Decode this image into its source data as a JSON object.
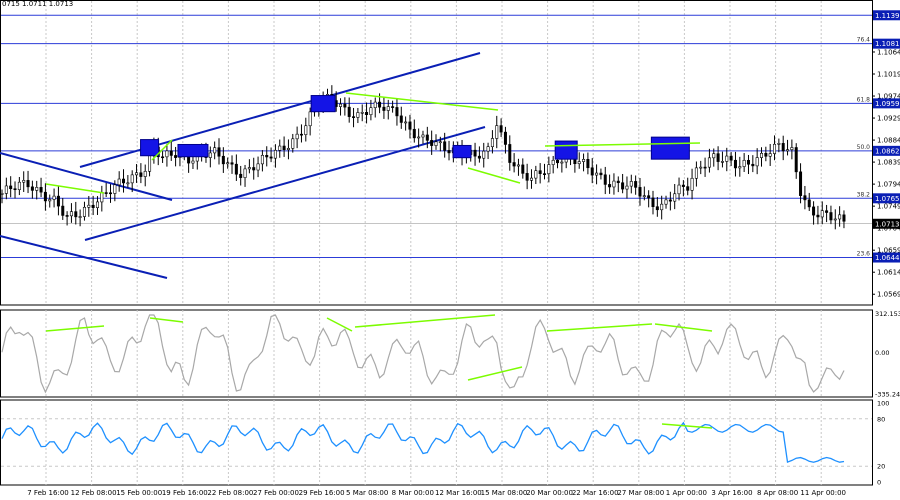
{
  "ohlc_readout": "0715 1.0711 1.0713",
  "colors": {
    "background": "#ffffff",
    "grid": "#c8c8c8",
    "candle": "#000000",
    "trendline": "#0a1fb5",
    "fib_line": "#2c3cd8",
    "fib_label_fill": "#0a1fb5",
    "zone": "#1414e6",
    "divergence": "#7cfc00",
    "cci": "#a8a8a8",
    "stochastic": "#1e90ff",
    "current_price_line": "#888888"
  },
  "chart_data": [
    {
      "type": "candlestick",
      "series_name": "EUR/USD",
      "price_axis": {
        "range": [
          1.0547,
          1.116
        ],
        "ticks": [
          "1.1064",
          "1.1019",
          "1.0974",
          "1.0929",
          "1.0884",
          "1.0839",
          "1.0794",
          "1.0749",
          "1.0704",
          "1.0659",
          "1.0614",
          "1.0569"
        ]
      },
      "current_price": "1.0713",
      "fib_levels": [
        {
          "level": "",
          "price": "1.1139"
        },
        {
          "level": "76.4",
          "price": "1.1081"
        },
        {
          "level": "61.8",
          "price": "1.0959"
        },
        {
          "level": "50.0",
          "price": "1.0862"
        },
        {
          "level": "38.2",
          "price": "1.0765"
        },
        {
          "level": "23.6",
          "price": "1.0644"
        }
      ],
      "x_labels": [
        "7 Feb 16:00",
        "12 Feb 08:00",
        "15 Feb 00:00",
        "19 Feb 16:00",
        "22 Feb 08:00",
        "27 Feb 00:00",
        "29 Feb 16:00",
        "5 Mar 08:00",
        "8 Mar 00:00",
        "12 Mar 16:00",
        "15 Mar 08:00",
        "20 Mar 00:00",
        "22 Mar 16:00",
        "27 Mar 08:00",
        "1 Apr 00:00",
        "3 Apr 16:00",
        "8 Apr 08:00",
        "11 Apr 00:00"
      ],
      "close_path": [
        [
          0,
          1.0775
        ],
        [
          3,
          1.0785
        ],
        [
          6,
          1.0795
        ],
        [
          9,
          1.078
        ],
        [
          12,
          1.076
        ],
        [
          15,
          1.072
        ],
        [
          18,
          1.0735
        ],
        [
          21,
          1.076
        ],
        [
          24,
          1.0775
        ],
        [
          27,
          1.079
        ],
        [
          30,
          1.0808
        ],
        [
          33,
          1.083
        ],
        [
          35,
          1.087
        ],
        [
          37,
          1.0845
        ],
        [
          40,
          1.0852
        ],
        [
          43,
          1.0848
        ],
        [
          46,
          1.086
        ],
        [
          49,
          1.0855
        ],
        [
          52,
          1.083
        ],
        [
          55,
          1.0818
        ],
        [
          58,
          1.0835
        ],
        [
          61,
          1.0845
        ],
        [
          64,
          1.086
        ],
        [
          67,
          1.0885
        ],
        [
          70,
          1.092
        ],
        [
          73,
          1.096
        ],
        [
          76,
          1.0965
        ],
        [
          79,
          1.095
        ],
        [
          82,
          1.0935
        ],
        [
          85,
          1.0945
        ],
        [
          88,
          1.095
        ],
        [
          91,
          1.0945
        ],
        [
          94,
          1.0905
        ],
        [
          97,
          1.088
        ],
        [
          100,
          1.0875
        ],
        [
          103,
          1.087
        ],
        [
          106,
          1.0862
        ],
        [
          109,
          1.0845
        ],
        [
          112,
          1.086
        ],
        [
          114,
          1.0925
        ],
        [
          117,
          1.085
        ],
        [
          120,
          1.081
        ],
        [
          122,
          1.08
        ],
        [
          125,
          1.0825
        ],
        [
          128,
          1.085
        ],
        [
          131,
          1.0845
        ],
        [
          134,
          1.083
        ],
        [
          137,
          1.0815
        ],
        [
          140,
          1.08
        ],
        [
          143,
          1.079
        ],
        [
          146,
          1.0782
        ],
        [
          149,
          1.076
        ],
        [
          152,
          1.0752
        ],
        [
          155,
          1.0775
        ],
        [
          158,
          1.0785
        ],
        [
          161,
          1.0835
        ],
        [
          164,
          1.0855
        ],
        [
          167,
          1.084
        ],
        [
          170,
          1.0825
        ],
        [
          173,
          1.0843
        ],
        [
          176,
          1.0862
        ],
        [
          179,
          1.087
        ],
        [
          182,
          1.0855
        ],
        [
          184,
          1.078
        ],
        [
          186,
          1.0745
        ],
        [
          189,
          1.0735
        ],
        [
          192,
          1.072
        ],
        [
          194,
          1.0713
        ]
      ],
      "resistance_zones": [
        {
          "bar": 34,
          "price_top": 1.0885,
          "price_bottom": 1.0852
        },
        {
          "bar": 44,
          "price_top": 1.0875,
          "price_bottom": 1.085
        },
        {
          "bar": 74,
          "price_top": 1.0975,
          "price_bottom": 1.0942
        },
        {
          "bar": 106,
          "price_top": 1.0873,
          "price_bottom": 1.0848
        },
        {
          "bar": 130,
          "price_top": 1.0882,
          "price_bottom": 1.0845
        },
        {
          "bar": 154,
          "price_top": 1.089,
          "price_bottom": 1.0845
        }
      ]
    },
    {
      "type": "line",
      "series_name": "CCI",
      "y_ticks": [
        "312.1539",
        "0.00",
        "-335.2470"
      ],
      "y_range": [
        -360,
        340
      ]
    },
    {
      "type": "line",
      "series_name": "Stochastic",
      "y_ticks": [
        "100",
        "80",
        "20",
        "0"
      ],
      "y_range": [
        0,
        100
      ]
    }
  ]
}
